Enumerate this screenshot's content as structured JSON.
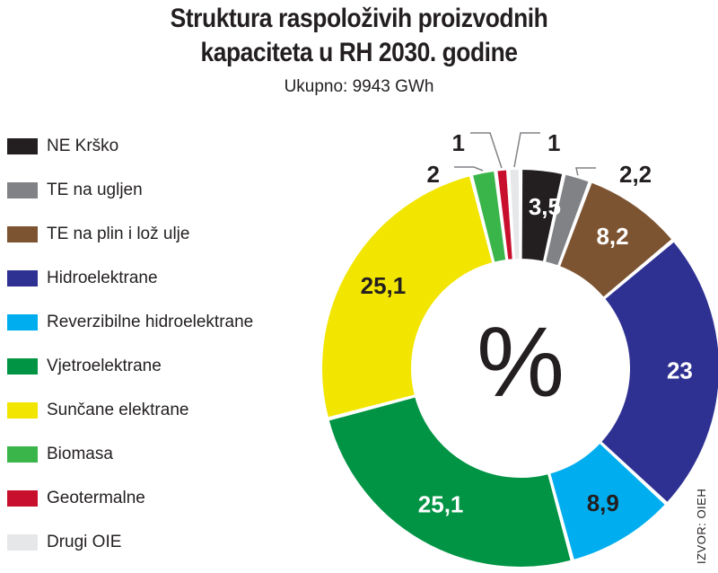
{
  "chart_data": {
    "type": "pie",
    "title_line1": "Struktura raspoloživih proizvodnih",
    "title_line2": "kapaciteta u RH 2030. godine",
    "subtitle": "Ukupno: 9943 GWh",
    "center_label": "%",
    "source": "IZVOR: OIEH",
    "categories": [
      "NE Krško",
      "TE na ugljen",
      "TE na plin i lož ulje",
      "Hidroelektrane",
      "Reverzibilne hidroelektrane",
      "Vjetroelektrane",
      "Sunčane elektrane",
      "Biomasa",
      "Geotermalne",
      "Drugi OIE"
    ],
    "values": [
      3.5,
      2.2,
      8.2,
      23,
      8.9,
      25.1,
      25.1,
      2,
      1,
      1
    ],
    "value_labels": [
      "3,5",
      "2,2",
      "8,2",
      "23",
      "8,9",
      "25,1",
      "25,1",
      "2",
      "1",
      "1"
    ],
    "colors": [
      "#231f20",
      "#808285",
      "#7d5432",
      "#2e3192",
      "#00aeef",
      "#009444",
      "#f2e500",
      "#39b54a",
      "#c8102e",
      "#e6e7e8"
    ],
    "legend_position": "left"
  }
}
